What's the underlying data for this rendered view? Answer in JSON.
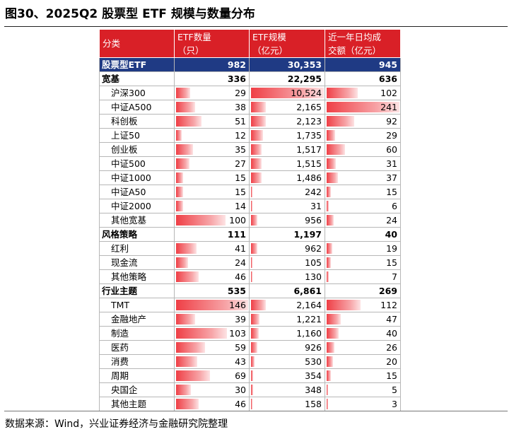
{
  "title": "图30、2025Q2 股票型 ETF 规模与数量分布",
  "source": "数据来源：Wind，兴业证券经济与金融研究院整理",
  "headers": {
    "category": "分类",
    "count_l1": "ETF数量",
    "count_l2": "（只）",
    "scale_l1": "ETF规模",
    "scale_l2": "（亿元）",
    "turnover_l1": "近一年日均成",
    "turnover_l2": "交额（亿元）"
  },
  "bar_color": "#ef3f46",
  "header_color": "#d92027",
  "total_color": "#1f3a84",
  "bar_max": {
    "count": 146,
    "scale": 10524,
    "turnover": 241
  },
  "rows": [
    {
      "kind": "total",
      "name": "股票型ETF",
      "count": "982",
      "scale": "30,353",
      "turnover": "945",
      "count_v": 982,
      "scale_v": 30353,
      "turnover_v": 945
    },
    {
      "kind": "group",
      "name": "宽基",
      "count": "336",
      "scale": "22,295",
      "turnover": "636",
      "count_v": 336,
      "scale_v": 22295,
      "turnover_v": 636
    },
    {
      "kind": "item",
      "name": "沪深300",
      "count": "29",
      "scale": "10,524",
      "turnover": "102",
      "count_v": 29,
      "scale_v": 10524,
      "turnover_v": 102
    },
    {
      "kind": "item",
      "name": "中证A500",
      "count": "38",
      "scale": "2,165",
      "turnover": "241",
      "count_v": 38,
      "scale_v": 2165,
      "turnover_v": 241
    },
    {
      "kind": "item",
      "name": "科创板",
      "count": "51",
      "scale": "2,123",
      "turnover": "92",
      "count_v": 51,
      "scale_v": 2123,
      "turnover_v": 92
    },
    {
      "kind": "item",
      "name": "上证50",
      "count": "12",
      "scale": "1,735",
      "turnover": "29",
      "count_v": 12,
      "scale_v": 1735,
      "turnover_v": 29
    },
    {
      "kind": "item",
      "name": "创业板",
      "count": "35",
      "scale": "1,517",
      "turnover": "60",
      "count_v": 35,
      "scale_v": 1517,
      "turnover_v": 60
    },
    {
      "kind": "item",
      "name": "中证500",
      "count": "27",
      "scale": "1,515",
      "turnover": "31",
      "count_v": 27,
      "scale_v": 1515,
      "turnover_v": 31
    },
    {
      "kind": "item",
      "name": "中证1000",
      "count": "15",
      "scale": "1,486",
      "turnover": "37",
      "count_v": 15,
      "scale_v": 1486,
      "turnover_v": 37
    },
    {
      "kind": "item",
      "name": "中证A50",
      "count": "15",
      "scale": "242",
      "turnover": "15",
      "count_v": 15,
      "scale_v": 242,
      "turnover_v": 15
    },
    {
      "kind": "item",
      "name": "中证2000",
      "count": "14",
      "scale": "31",
      "turnover": "6",
      "count_v": 14,
      "scale_v": 31,
      "turnover_v": 6
    },
    {
      "kind": "item",
      "name": "其他宽基",
      "count": "100",
      "scale": "956",
      "turnover": "24",
      "count_v": 100,
      "scale_v": 956,
      "turnover_v": 24
    },
    {
      "kind": "group",
      "name": "风格策略",
      "count": "111",
      "scale": "1,197",
      "turnover": "40",
      "count_v": 111,
      "scale_v": 1197,
      "turnover_v": 40
    },
    {
      "kind": "item",
      "name": "红利",
      "count": "41",
      "scale": "962",
      "turnover": "19",
      "count_v": 41,
      "scale_v": 962,
      "turnover_v": 19
    },
    {
      "kind": "item",
      "name": "现金流",
      "count": "24",
      "scale": "105",
      "turnover": "15",
      "count_v": 24,
      "scale_v": 105,
      "turnover_v": 15
    },
    {
      "kind": "item",
      "name": "其他策略",
      "count": "46",
      "scale": "130",
      "turnover": "7",
      "count_v": 46,
      "scale_v": 130,
      "turnover_v": 7
    },
    {
      "kind": "group",
      "name": "行业主题",
      "count": "535",
      "scale": "6,861",
      "turnover": "269",
      "count_v": 535,
      "scale_v": 6861,
      "turnover_v": 269
    },
    {
      "kind": "item",
      "name": "TMT",
      "count": "146",
      "scale": "2,164",
      "turnover": "112",
      "count_v": 146,
      "scale_v": 2164,
      "turnover_v": 112
    },
    {
      "kind": "item",
      "name": "金融地产",
      "count": "39",
      "scale": "1,221",
      "turnover": "47",
      "count_v": 39,
      "scale_v": 1221,
      "turnover_v": 47
    },
    {
      "kind": "item",
      "name": "制造",
      "count": "103",
      "scale": "1,160",
      "turnover": "40",
      "count_v": 103,
      "scale_v": 1160,
      "turnover_v": 40
    },
    {
      "kind": "item",
      "name": "医药",
      "count": "59",
      "scale": "926",
      "turnover": "26",
      "count_v": 59,
      "scale_v": 926,
      "turnover_v": 26
    },
    {
      "kind": "item",
      "name": "消费",
      "count": "43",
      "scale": "530",
      "turnover": "20",
      "count_v": 43,
      "scale_v": 530,
      "turnover_v": 20
    },
    {
      "kind": "item",
      "name": "周期",
      "count": "69",
      "scale": "354",
      "turnover": "15",
      "count_v": 69,
      "scale_v": 354,
      "turnover_v": 15
    },
    {
      "kind": "item",
      "name": "央国企",
      "count": "30",
      "scale": "348",
      "turnover": "5",
      "count_v": 30,
      "scale_v": 348,
      "turnover_v": 5
    },
    {
      "kind": "item",
      "name": "其他主题",
      "count": "46",
      "scale": "158",
      "turnover": "3",
      "count_v": 46,
      "scale_v": 158,
      "turnover_v": 3
    }
  ]
}
